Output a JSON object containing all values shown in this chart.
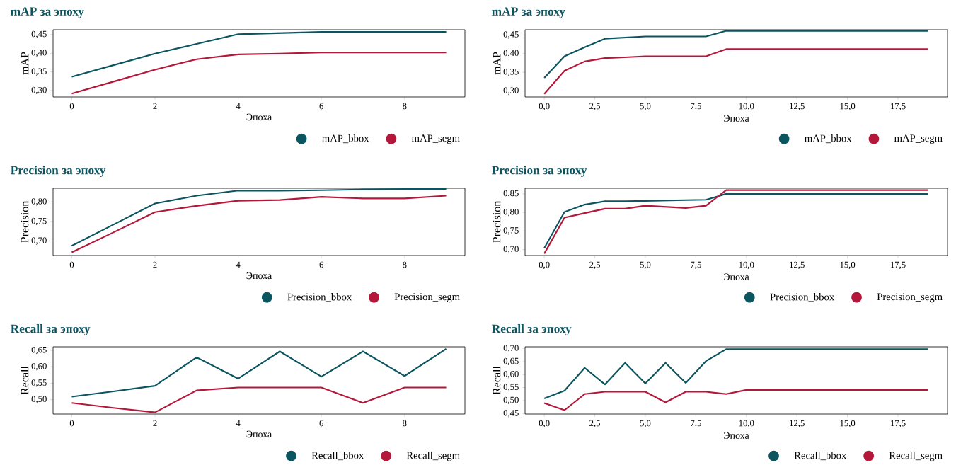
{
  "chart_data": [
    {
      "type": "line",
      "title": "mAP за эпоху",
      "xlabel": "Эпоха",
      "ylabel": "mAP",
      "legend": "bottom right",
      "x": [
        0,
        1,
        2,
        3,
        4,
        5,
        6,
        7,
        8,
        9
      ],
      "xlim": [
        -0.45,
        9.45
      ],
      "xticks": [
        0,
        2,
        4,
        6,
        8
      ],
      "ylim": [
        0.283,
        0.463
      ],
      "yticks": [
        {
          "value": 0.3,
          "label": "0,30"
        },
        {
          "value": 0.35,
          "label": "0,35"
        },
        {
          "value": 0.4,
          "label": "0,40"
        },
        {
          "value": 0.45,
          "label": "0,45"
        }
      ],
      "series": [
        {
          "name": "mAP_bbox",
          "color": "#0b5560",
          "values": [
            0.337,
            0.368,
            0.399,
            0.425,
            0.451,
            0.454,
            0.457,
            0.457,
            0.457,
            0.457
          ]
        },
        {
          "name": "mAP_segm",
          "color": "#b5173a",
          "values": [
            0.292,
            0.324,
            0.356,
            0.384,
            0.397,
            0.399,
            0.402,
            0.402,
            0.402,
            0.402
          ]
        }
      ]
    },
    {
      "type": "line",
      "title": "mAP за эпоху",
      "xlabel": "Эпоха",
      "ylabel": "mAP",
      "legend": "bottom right",
      "x": [
        0,
        1,
        2,
        3,
        4,
        5,
        6,
        7,
        8,
        9,
        10,
        11,
        12,
        13,
        14,
        15,
        16,
        17,
        18,
        19
      ],
      "xlim": [
        -0.95,
        19.95
      ],
      "xticks": [
        {
          "value": 0,
          "label": "0,0"
        },
        {
          "value": 2.5,
          "label": "2,5"
        },
        {
          "value": 5,
          "label": "5,0"
        },
        {
          "value": 7.5,
          "label": "7,5"
        },
        {
          "value": 10,
          "label": "10,0"
        },
        {
          "value": 12.5,
          "label": "12,5"
        },
        {
          "value": 15,
          "label": "15,0"
        },
        {
          "value": 17.5,
          "label": "17,5"
        }
      ],
      "ylim": [
        0.284,
        0.464
      ],
      "yticks": [
        {
          "value": 0.3,
          "label": "0,30"
        },
        {
          "value": 0.35,
          "label": "0,35"
        },
        {
          "value": 0.4,
          "label": "0,40"
        },
        {
          "value": 0.45,
          "label": "0,45"
        }
      ],
      "series": [
        {
          "name": "mAP_bbox",
          "color": "#0b5560",
          "values": [
            0.335,
            0.393,
            0.417,
            0.44,
            0.443,
            0.446,
            0.446,
            0.446,
            0.446,
            0.461,
            0.461,
            0.461,
            0.461,
            0.461,
            0.461,
            0.461,
            0.461,
            0.461,
            0.461,
            0.461
          ]
        },
        {
          "name": "mAP_segm",
          "color": "#b5173a",
          "values": [
            0.292,
            0.354,
            0.379,
            0.388,
            0.39,
            0.393,
            0.393,
            0.393,
            0.393,
            0.412,
            0.412,
            0.412,
            0.412,
            0.412,
            0.412,
            0.412,
            0.412,
            0.412,
            0.412,
            0.412
          ]
        }
      ]
    },
    {
      "type": "line",
      "title": "Precision за эпоху",
      "xlabel": "Эпоха",
      "ylabel": "Precision",
      "legend": "bottom right",
      "x": [
        0,
        1,
        2,
        3,
        4,
        5,
        6,
        7,
        8,
        9
      ],
      "xlim": [
        -0.45,
        9.45
      ],
      "xticks": [
        0,
        2,
        4,
        6,
        8
      ],
      "ylim": [
        0.663,
        0.835
      ],
      "yticks": [
        {
          "value": 0.7,
          "label": "0,70"
        },
        {
          "value": 0.75,
          "label": "0,75"
        },
        {
          "value": 0.8,
          "label": "0,80"
        }
      ],
      "series": [
        {
          "name": "Precision_bbox",
          "color": "#0b5560",
          "values": [
            0.688,
            0.742,
            0.796,
            0.816,
            0.829,
            0.829,
            0.83,
            0.832,
            0.833,
            0.833
          ]
        },
        {
          "name": "Precision_segm",
          "color": "#b5173a",
          "values": [
            0.671,
            0.722,
            0.774,
            0.79,
            0.803,
            0.805,
            0.813,
            0.809,
            0.809,
            0.816
          ]
        }
      ]
    },
    {
      "type": "line",
      "title": "Precision за эпоху",
      "xlabel": "Эпоха",
      "ylabel": "Precision",
      "legend": "bottom right",
      "x": [
        0,
        1,
        2,
        3,
        4,
        5,
        6,
        7,
        8,
        9,
        10,
        11,
        12,
        13,
        14,
        15,
        16,
        17,
        18,
        19
      ],
      "xlim": [
        -0.95,
        19.95
      ],
      "xticks": [
        {
          "value": 0,
          "label": "0,0"
        },
        {
          "value": 2.5,
          "label": "2,5"
        },
        {
          "value": 5,
          "label": "5,0"
        },
        {
          "value": 7.5,
          "label": "7,5"
        },
        {
          "value": 10,
          "label": "10,0"
        },
        {
          "value": 12.5,
          "label": "12,5"
        },
        {
          "value": 15,
          "label": "15,0"
        },
        {
          "value": 17.5,
          "label": "17,5"
        }
      ],
      "ylim": [
        0.684,
        0.865
      ],
      "yticks": [
        {
          "value": 0.7,
          "label": "0,70"
        },
        {
          "value": 0.75,
          "label": "0,75"
        },
        {
          "value": 0.8,
          "label": "0,80"
        },
        {
          "value": 0.85,
          "label": "0,85"
        }
      ],
      "series": [
        {
          "name": "Precision_bbox",
          "color": "#0b5560",
          "values": [
            0.704,
            0.801,
            0.821,
            0.83,
            0.83,
            0.831,
            0.832,
            0.833,
            0.834,
            0.85,
            0.85,
            0.85,
            0.85,
            0.85,
            0.85,
            0.85,
            0.85,
            0.85,
            0.85,
            0.85
          ]
        },
        {
          "name": "Precision_segm",
          "color": "#b5173a",
          "values": [
            0.689,
            0.786,
            0.798,
            0.81,
            0.81,
            0.818,
            0.815,
            0.812,
            0.818,
            0.86,
            0.86,
            0.86,
            0.86,
            0.86,
            0.86,
            0.86,
            0.86,
            0.86,
            0.86,
            0.86
          ]
        }
      ]
    },
    {
      "type": "line",
      "title": "Recall за эпоху",
      "xlabel": "Эпоха",
      "ylabel": "Recall",
      "legend": "bottom right",
      "x": [
        0,
        1,
        2,
        3,
        4,
        5,
        6,
        7,
        8,
        9
      ],
      "xlim": [
        -0.45,
        9.45
      ],
      "xticks": [
        0,
        2,
        4,
        6,
        8
      ],
      "ylim": [
        0.456,
        0.661
      ],
      "yticks": [
        {
          "value": 0.5,
          "label": "0,50"
        },
        {
          "value": 0.55,
          "label": "0,55"
        },
        {
          "value": 0.6,
          "label": "0,60"
        },
        {
          "value": 0.65,
          "label": "0,65"
        }
      ],
      "series": [
        {
          "name": "Recall_bbox",
          "color": "#0b5560",
          "values": [
            0.509,
            0.525,
            0.542,
            0.629,
            0.564,
            0.647,
            0.57,
            0.647,
            0.572,
            0.655
          ]
        },
        {
          "name": "Recall_segm",
          "color": "#b5173a",
          "values": [
            0.49,
            0.475,
            0.461,
            0.528,
            0.537,
            0.537,
            0.537,
            0.49,
            0.537,
            0.537
          ]
        }
      ]
    },
    {
      "type": "line",
      "title": "Recall за эпоху",
      "xlabel": "Эпоха",
      "ylabel": "Recall",
      "legend": "bottom right",
      "x": [
        0,
        1,
        2,
        3,
        4,
        5,
        6,
        7,
        8,
        9,
        10,
        11,
        12,
        13,
        14,
        15,
        16,
        17,
        18,
        19
      ],
      "xlim": [
        -0.95,
        19.95
      ],
      "xticks": [
        {
          "value": 0,
          "label": "0,0"
        },
        {
          "value": 2.5,
          "label": "2,5"
        },
        {
          "value": 5,
          "label": "5,0"
        },
        {
          "value": 7.5,
          "label": "7,5"
        },
        {
          "value": 10,
          "label": "10,0"
        },
        {
          "value": 12.5,
          "label": "12,5"
        },
        {
          "value": 15,
          "label": "15,0"
        },
        {
          "value": 17.5,
          "label": "17,5"
        }
      ],
      "ylim": [
        0.448,
        0.707
      ],
      "yticks": [
        {
          "value": 0.45,
          "label": "0,45"
        },
        {
          "value": 0.5,
          "label": "0,50"
        },
        {
          "value": 0.55,
          "label": "0,55"
        },
        {
          "value": 0.6,
          "label": "0,60"
        },
        {
          "value": 0.65,
          "label": "0,65"
        },
        {
          "value": 0.7,
          "label": "0,70"
        }
      ],
      "series": [
        {
          "name": "Recall_bbox",
          "color": "#0b5560",
          "values": [
            0.508,
            0.538,
            0.626,
            0.562,
            0.645,
            0.566,
            0.645,
            0.568,
            0.652,
            0.698,
            0.698,
            0.698,
            0.698,
            0.698,
            0.698,
            0.698,
            0.698,
            0.698,
            0.698,
            0.698
          ]
        },
        {
          "name": "Recall_segm",
          "color": "#b5173a",
          "values": [
            0.49,
            0.463,
            0.525,
            0.534,
            0.534,
            0.534,
            0.493,
            0.534,
            0.534,
            0.525,
            0.541,
            0.541,
            0.541,
            0.541,
            0.541,
            0.541,
            0.541,
            0.541,
            0.541,
            0.541
          ]
        }
      ]
    }
  ]
}
